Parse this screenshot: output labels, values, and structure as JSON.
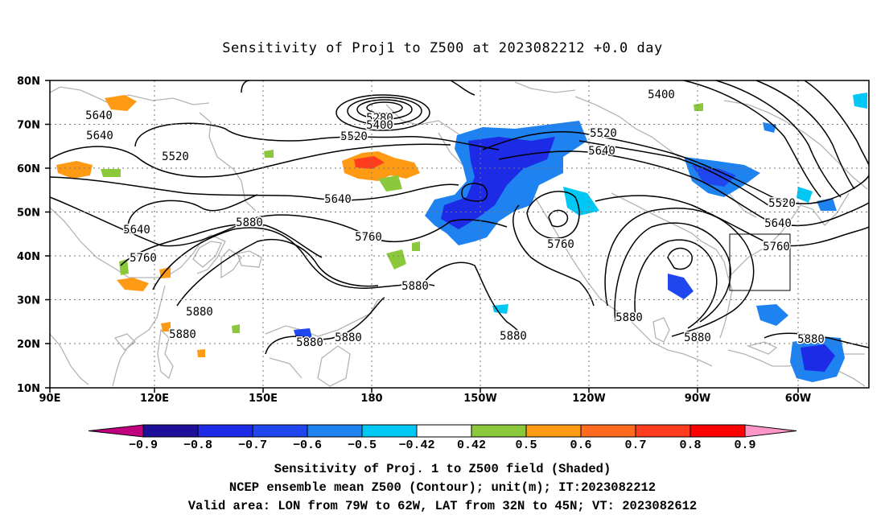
{
  "title": "Sensitivity of Proj1 to Z500 at 2023082212 +0.0 day",
  "map": {
    "lat_labels": [
      "80N",
      "70N",
      "60N",
      "50N",
      "40N",
      "30N",
      "20N",
      "10N"
    ],
    "lon_labels": [
      "90E",
      "120E",
      "150E",
      "180",
      "150W",
      "120W",
      "90W",
      "60W"
    ],
    "contour_labels": [
      "5280",
      "5400",
      "5400",
      "5520",
      "5520",
      "5520",
      "5520",
      "5640",
      "5640",
      "5640",
      "5640",
      "5640",
      "5640",
      "5760",
      "5760",
      "5760",
      "5760",
      "5880",
      "5880",
      "5880",
      "5880",
      "5880",
      "5880",
      "5880",
      "5880",
      "5880",
      "5880"
    ],
    "valid_area_box": {
      "lon_from": "79W",
      "lon_to": "62W",
      "lat_from": "32N",
      "lat_to": "45N"
    }
  },
  "colorbar": {
    "labels": [
      "-0.9",
      "-0.8",
      "-0.7",
      "-0.6",
      "-0.5",
      "-0.42",
      "0.42",
      "0.5",
      "0.6",
      "0.7",
      "0.8",
      "0.9"
    ],
    "colors": [
      "#c0007f",
      "#1e0f9a",
      "#1d2ae6",
      "#2046ee",
      "#1e82f0",
      "#00c8f5",
      "#ffffff",
      "#8cc83c",
      "#ff9a14",
      "#ff6a1e",
      "#ff3c1e",
      "#ff0000",
      "#ff96c8"
    ]
  },
  "caption": {
    "line1": "Sensitivity of Proj. 1 to Z500 field (Shaded)",
    "line2": "NCEP ensemble mean Z500 (Contour); unit(m); IT:2023082212",
    "line3": "Valid area: LON from 79W to 62W, LAT from 32N to 45N; VT: 2023082612"
  }
}
